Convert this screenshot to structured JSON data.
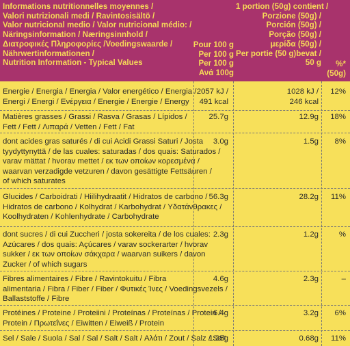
{
  "header": {
    "label_lines": [
      "Informations nutritionnelles moyennes /",
      "Valori nutrizionali medi / Ravintosisältö /",
      "Valor nutricional medio / Valor nutricional médio: /",
      "Näringsinformation / Næringsinnhold /",
      "Διατροφικές Πληροφορίες /Voedingswaarde /",
      "Nährwertinformationen /",
      "Nutrition Information - Typical Values"
    ],
    "per100_lines": [
      "Pour 100 g",
      "Per 100 g",
      "Per 100 g",
      "Ανά 100g"
    ],
    "serving_lines": [
      "1 portion (50g) contient /",
      "Porzione (50g) /",
      "Porción (50g) /",
      "Porção (50g) /",
      "μερίδα (50g) /",
      "Per portie (50 g)bevat /",
      "50 g"
    ],
    "pct_lines": [
      "%*",
      "(50g)"
    ]
  },
  "rows": [
    {
      "label_lines": [
        "Energie / Energia / Energia / Valor energético / Energia /",
        "Energi / Energi / Ενέργεια / Energie / Energie / Energy"
      ],
      "per100_lines": [
        "2057 kJ /",
        "491 kcal"
      ],
      "serving_lines": [
        "1028 kJ /",
        "246 kcal"
      ],
      "pct": "12%"
    },
    {
      "label_lines": [
        "Matières grasses / Grassi / Rasva / Grasas / Lípidos /",
        "Fett / Fett / Λιπαρά / Vetten / Fett / Fat"
      ],
      "per100_lines": [
        "25.7g"
      ],
      "serving_lines": [
        "12.9g"
      ],
      "pct": "18%"
    },
    {
      "label_lines": [
        "dont acides gras saturés / di cui Acidi Grassi Saturi / Josta",
        "tyydyttynyttä / de las cuales: saturadas / dos quais: Saturados /",
        "varav mättat / hvorav mettet / εκ των οποίων κορεσμένα /",
        "waarvan verzadigde vetzuren / davon gesättigte Fettsäuren /",
        "of which saturates"
      ],
      "per100_lines": [
        "3.0g"
      ],
      "serving_lines": [
        "1.5g"
      ],
      "pct": "8%"
    },
    {
      "label_lines": [
        "Glucides / Carboidrati / Hiilihydraatit / Hidratos de carbono /",
        "Hidratos de carbono / Kolhydrat / Karbohydrat / Υδατάνθρακες /",
        "Koolhydraten / Kohlenhydrate / Carbohydrate"
      ],
      "per100_lines": [
        "56.3g"
      ],
      "serving_lines": [
        "28.2g"
      ],
      "pct": "11%"
    },
    {
      "label_lines": [
        "dont sucres / di cui Zuccheri / josta sokereita / de los cuales:",
        "Azúcares / dos quais: Açúcares / varav sockerarter / hvorav",
        "sukker / εκ των οποίων σάκχαρα / waarvan suikers / davon",
        "Zucker / of which sugars"
      ],
      "per100_lines": [
        "2.3g"
      ],
      "serving_lines": [
        "1.2g"
      ],
      "pct": "%"
    },
    {
      "label_lines": [
        "Fibres alimentaires / Fibre / Ravintokuitu / Fibra",
        "alimentaria / Fibra / Fiber / Fiber / Φυτικές Ίνες / Voedingsvezels /",
        "Ballaststoffe / Fibre"
      ],
      "per100_lines": [
        "4.6g"
      ],
      "serving_lines": [
        "2.3g"
      ],
      "pct": "–"
    },
    {
      "label_lines": [
        "Protéines / Proteine / Proteiini / Proteínas / Proteínas / Protein /",
        "Protein / Πρωτεΐνες / Eiwitten / Eiweiß / Protein"
      ],
      "per100_lines": [
        "6.4g"
      ],
      "serving_lines": [
        "3.2g"
      ],
      "pct": "6%"
    },
    {
      "label_lines": [
        "Sel / Sale / Suola / Sal / Sal / Salt / Salt / Αλάτι / Zout / Salz / Salt"
      ],
      "per100_lines": [
        "1.35g"
      ],
      "serving_lines": [
        "0.68g"
      ],
      "pct": "11%"
    }
  ]
}
